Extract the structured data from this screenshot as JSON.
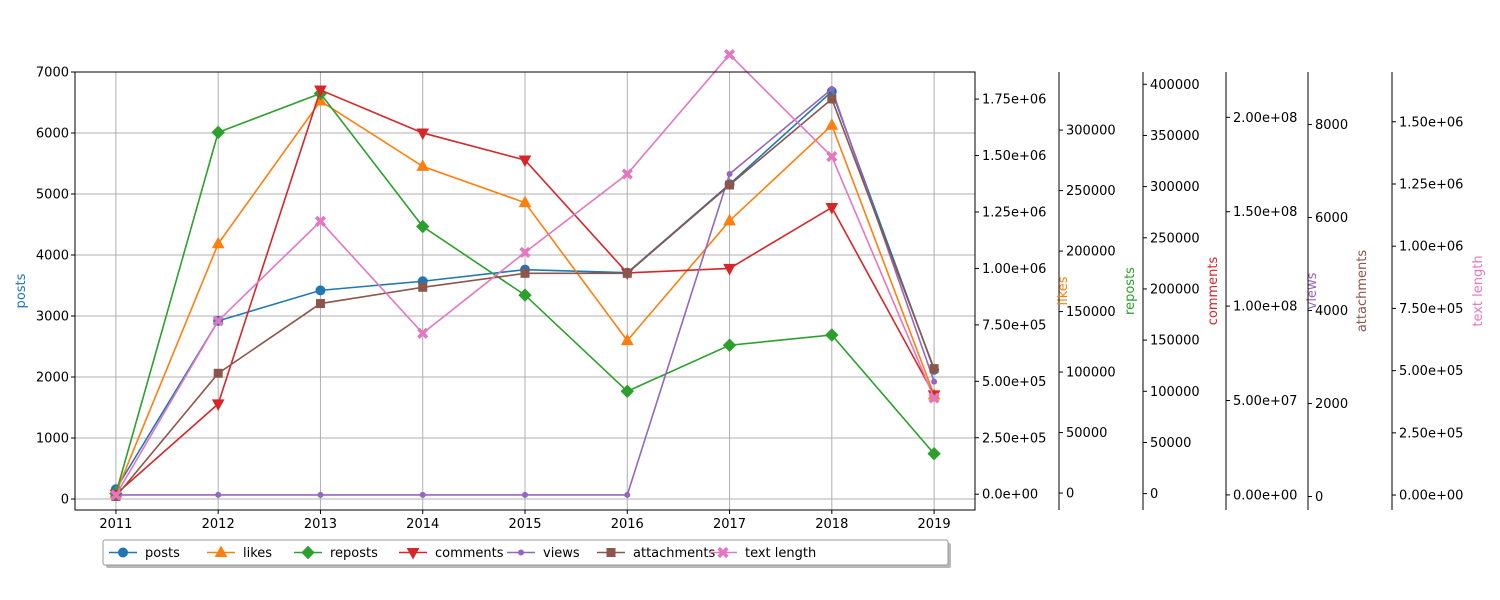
{
  "chart_data": {
    "type": "line",
    "x": [
      2011,
      2012,
      2013,
      2014,
      2015,
      2016,
      2017,
      2018,
      2019
    ],
    "grid": true,
    "legend_placement": "bottom-left",
    "series": [
      {
        "name": "posts",
        "color": "#1f77b4",
        "marker": "circle",
        "axis_label": "posts",
        "values": [
          160,
          2920,
          3420,
          3570,
          3760,
          3710,
          5160,
          6680,
          2120
        ],
        "ylim": [
          -180,
          7000
        ],
        "ticks": [
          0,
          1000,
          2000,
          3000,
          4000,
          5000,
          6000,
          7000
        ],
        "tick_labels": [
          "0",
          "1000",
          "2000",
          "3000",
          "4000",
          "5000",
          "6000",
          "7000"
        ]
      },
      {
        "name": "likes",
        "color": "#ff7f0e",
        "marker": "triangle-up",
        "axis_label": "likes",
        "values": [
          0,
          206000,
          324000,
          270000,
          240000,
          126000,
          225000,
          304000,
          81000
        ],
        "ylim": [
          -14000,
          348000
        ],
        "ticks": [
          0,
          50000,
          100000,
          150000,
          200000,
          250000,
          300000
        ],
        "tick_labels": [
          "0",
          "50000",
          "100000",
          "150000",
          "200000",
          "250000",
          "300000"
        ]
      },
      {
        "name": "reposts",
        "color": "#2ca02c",
        "marker": "diamond",
        "axis_label": "reposts",
        "values": [
          0,
          353000,
          391000,
          261000,
          194000,
          100000,
          145000,
          155000,
          39000
        ],
        "ylim": [
          -16000,
          412000
        ],
        "ticks": [
          0,
          50000,
          100000,
          150000,
          200000,
          250000,
          300000,
          350000,
          400000
        ],
        "tick_labels": [
          "0",
          "50000",
          "100000",
          "150000",
          "200000",
          "250000",
          "300000",
          "350000",
          "400000"
        ]
      },
      {
        "name": "comments",
        "color": "#d62728",
        "marker": "triangle-down",
        "axis_label": "comments",
        "values": [
          0,
          400000.0,
          1790000.0,
          1600000.0,
          1480000.0,
          980000.0,
          1000000.0,
          1270000.0,
          440000.0
        ],
        "ylim": [
          -70000,
          1870000.0
        ],
        "ticks": [
          0,
          250000,
          500000,
          750000,
          1000000,
          1250000,
          1500000,
          1750000
        ],
        "tick_labels": [
          "0.0e+00",
          "2.50e+05",
          "5.00e+05",
          "7.50e+05",
          "1.00e+06",
          "1.25e+06",
          "1.50e+06",
          "1.75e+06"
        ]
      },
      {
        "name": "views",
        "color": "#9467bd",
        "marker": "point",
        "axis_label": "views",
        "values": [
          0,
          0,
          0,
          0,
          0,
          0,
          170000000.0,
          215000000.0,
          60000000.0
        ],
        "ylim": [
          -8000000,
          224000000.0
        ],
        "ticks": [
          0,
          50000000,
          100000000,
          150000000,
          200000000
        ],
        "tick_labels": [
          "0.00e+00",
          "5.00e+07",
          "1.00e+08",
          "1.50e+08",
          "2.00e+08"
        ]
      },
      {
        "name": "attachments",
        "color": "#8c564b",
        "marker": "square",
        "axis_label": "attachments",
        "values": [
          0,
          2650,
          4150,
          4500,
          4800,
          4800,
          6700,
          8550,
          2750
        ],
        "ylim": [
          -290,
          9130
        ],
        "ticks": [
          0,
          2000,
          4000,
          6000,
          8000
        ],
        "tick_labels": [
          "0",
          "2000",
          "4000",
          "6000",
          "8000"
        ]
      },
      {
        "name": "text length",
        "color": "#e377c2",
        "marker": "x",
        "axis_label": "text length",
        "values": [
          0,
          700000,
          1100000,
          650000,
          975000,
          1290000,
          1770000,
          1360000,
          390000
        ],
        "ylim": [
          -60000,
          1700000
        ],
        "ticks": [
          0,
          250000,
          500000,
          750000,
          1000000,
          1250000,
          1500000
        ],
        "tick_labels": [
          "0.00e+00",
          "2.50e+05",
          "5.00e+05",
          "7.50e+05",
          "1.00e+06",
          "1.25e+06",
          "1.50e+06"
        ]
      }
    ]
  }
}
